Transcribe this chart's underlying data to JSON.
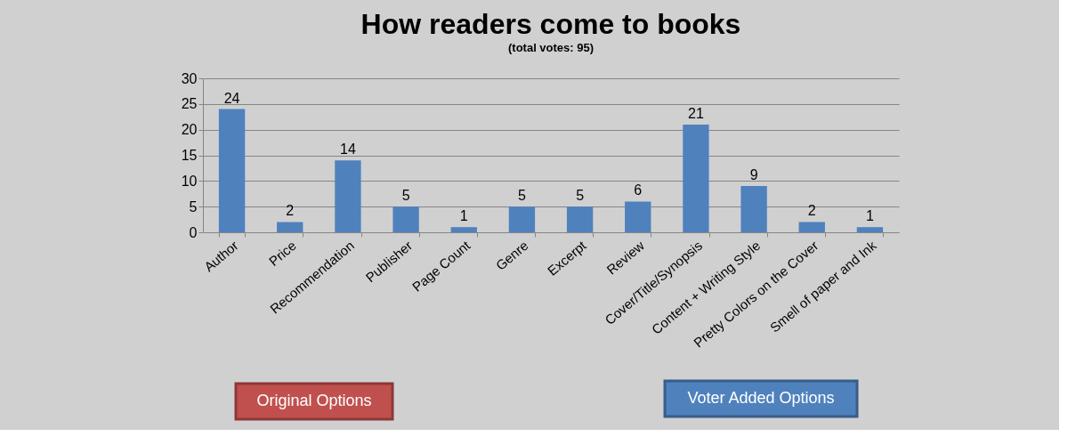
{
  "chart_data": {
    "type": "bar",
    "title": "How readers come to books",
    "subtitle": "(total votes: 95)",
    "categories": [
      "Author",
      "Price",
      "Recommendation",
      "Publisher",
      "Page Count",
      "Genre",
      "Excerpt",
      "Review",
      "Cover/Title/Synopsis",
      "Content + Writing Style",
      "Pretty Colors on the Cover",
      "Smell of paper and Ink"
    ],
    "values": [
      24,
      2,
      14,
      5,
      1,
      5,
      5,
      6,
      21,
      9,
      2,
      1
    ],
    "color": "#4f81bd",
    "ylim": [
      0,
      30
    ],
    "yticks": [
      0,
      5,
      10,
      15,
      20,
      25,
      30
    ],
    "grid": "y",
    "data_labels": true,
    "annotations": [
      "Original Options",
      "Voter Added Options"
    ]
  }
}
